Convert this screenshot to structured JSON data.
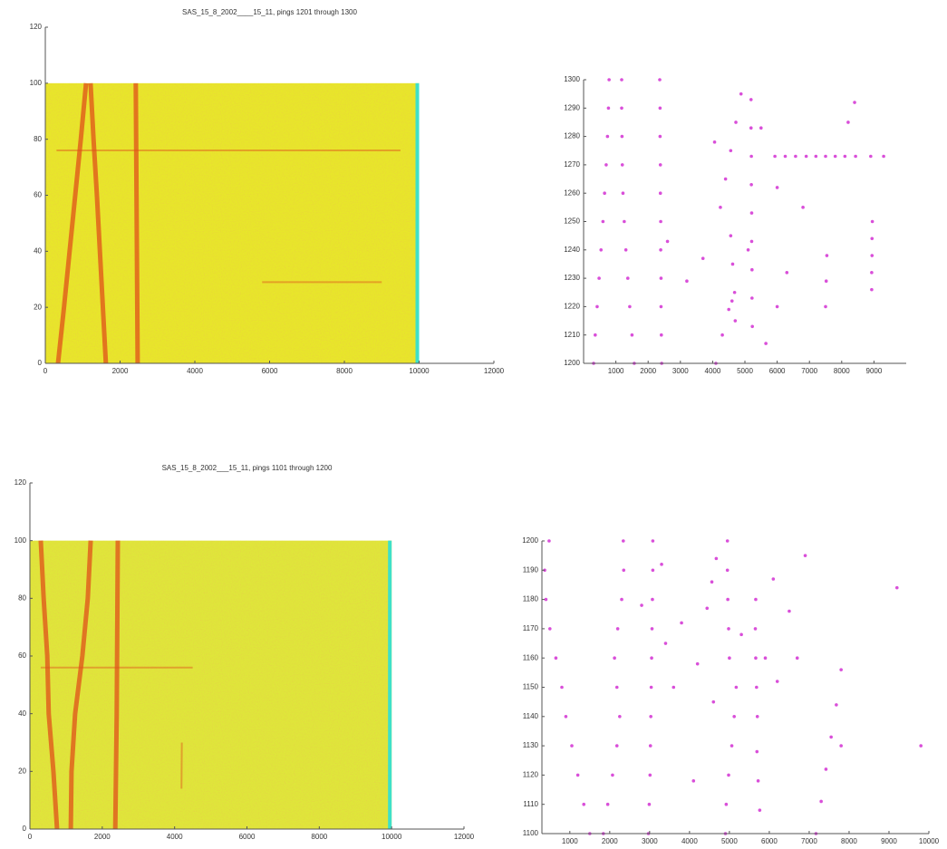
{
  "chart_data": [
    {
      "type": "heatmap",
      "title": "SAS_15_8_2002____15_11, pings 1201 through 1300",
      "xlim": [
        0,
        12000
      ],
      "xticks": [
        0,
        2000,
        4000,
        6000,
        8000,
        10000,
        12000
      ],
      "ylim": [
        0,
        120
      ],
      "yticks": [
        0,
        20,
        40,
        60,
        80,
        100,
        120
      ],
      "image_xlim": [
        0,
        10000
      ],
      "image_ylim": [
        0,
        100
      ],
      "background_color": "#e8e62a",
      "edge_color": "#3fe0c8",
      "track_color": "#e0501a",
      "tracks": [
        {
          "x": [
            340,
            500,
            650,
            800,
            950,
            1090
          ],
          "y": [
            0,
            20,
            40,
            60,
            80,
            100
          ]
        },
        {
          "x": [
            1620,
            1540,
            1460,
            1380,
            1290,
            1210
          ],
          "y": [
            0,
            20,
            40,
            60,
            80,
            100
          ]
        },
        {
          "x": [
            2470,
            2460,
            2450,
            2440,
            2430,
            2420
          ],
          "y": [
            0,
            20,
            40,
            60,
            80,
            100
          ]
        },
        {
          "x": [
            300,
            9500
          ],
          "y": [
            76,
            76
          ]
        },
        {
          "x": [
            5800,
            9000
          ],
          "y": [
            29,
            29
          ]
        }
      ]
    },
    {
      "type": "scatter",
      "xlim": [
        0,
        10000
      ],
      "xticks": [
        1000,
        2000,
        3000,
        4000,
        5000,
        6000,
        7000,
        8000,
        9000
      ],
      "ylim": [
        1200,
        1300
      ],
      "yticks": [
        1200,
        1210,
        1220,
        1230,
        1240,
        1250,
        1260,
        1270,
        1280,
        1290,
        1300
      ],
      "color": "#d94fd9",
      "x": [
        310,
        360,
        420,
        480,
        540,
        600,
        650,
        700,
        740,
        770,
        790,
        1570,
        1500,
        1430,
        1370,
        1310,
        1260,
        1220,
        1200,
        1190,
        1180,
        1180,
        2420,
        2410,
        2400,
        2400,
        2390,
        2390,
        2380,
        2380,
        2370,
        2370,
        2360,
        4240,
        4400,
        4560,
        4720,
        4880,
        5230,
        5220,
        5220,
        5210,
        5210,
        5200,
        5200,
        5190,
        5190,
        4700,
        4680,
        4620,
        4560,
        4100,
        4300,
        4500,
        5650,
        6000,
        6300,
        7500,
        7520,
        7540,
        8930,
        8930,
        8940,
        8940,
        8950,
        5930,
        6250,
        6570,
        6900,
        7200,
        7500,
        7800,
        8100,
        8430,
        8900,
        9300,
        4060,
        6000,
        5100,
        3700,
        2600,
        6800,
        8400,
        8200,
        5500,
        3200,
        4600
      ],
      "y": [
        1200,
        1210,
        1220,
        1230,
        1240,
        1250,
        1260,
        1270,
        1280,
        1290,
        1300,
        1200,
        1210,
        1220,
        1230,
        1240,
        1250,
        1260,
        1270,
        1280,
        1290,
        1300,
        1200,
        1210,
        1220,
        1230,
        1240,
        1250,
        1260,
        1270,
        1280,
        1290,
        1300,
        1255,
        1265,
        1275,
        1285,
        1295,
        1213,
        1223,
        1233,
        1243,
        1253,
        1263,
        1273,
        1283,
        1293,
        1215,
        1225,
        1235,
        1245,
        1200,
        1210,
        1219,
        1207,
        1220,
        1232,
        1220,
        1229,
        1238,
        1226,
        1232,
        1238,
        1244,
        1250,
        1273,
        1273,
        1273,
        1273,
        1273,
        1273,
        1273,
        1273,
        1273,
        1273,
        1273,
        1278,
        1262,
        1240,
        1237,
        1243,
        1255,
        1292,
        1285,
        1283,
        1229,
        1222
      ]
    },
    {
      "type": "heatmap",
      "title": "SAS_15_8_2002___15_11, pings 1101 through 1200",
      "xlim": [
        0,
        12000
      ],
      "xticks": [
        0,
        2000,
        4000,
        6000,
        8000,
        10000,
        12000
      ],
      "ylim": [
        0,
        120
      ],
      "yticks": [
        0,
        20,
        40,
        60,
        80,
        100,
        120
      ],
      "image_xlim": [
        0,
        10000
      ],
      "image_ylim": [
        0,
        100
      ],
      "background_color": "#dfe63a",
      "edge_color": "#3fe0c8",
      "track_color": "#e0501a",
      "tracks": [
        {
          "x": [
            750,
            650,
            520,
            480,
            380,
            300
          ],
          "y": [
            0,
            20,
            40,
            60,
            80,
            100
          ]
        },
        {
          "x": [
            1130,
            1150,
            1250,
            1450,
            1600,
            1680
          ],
          "y": [
            0,
            20,
            40,
            60,
            80,
            100
          ]
        },
        {
          "x": [
            2360,
            2380,
            2400,
            2410,
            2420,
            2430
          ],
          "y": [
            0,
            20,
            40,
            60,
            80,
            100
          ]
        },
        {
          "x": [
            4190,
            4200
          ],
          "y": [
            14,
            30
          ]
        },
        {
          "x": [
            300,
            4500
          ],
          "y": [
            56,
            56
          ]
        }
      ]
    },
    {
      "type": "scatter",
      "xlim": [
        300,
        10000
      ],
      "xticks": [
        1000,
        2000,
        3000,
        4000,
        5000,
        6000,
        7000,
        8000,
        9000,
        10000
      ],
      "ylim": [
        1100,
        1200
      ],
      "yticks": [
        1100,
        1110,
        1120,
        1130,
        1140,
        1150,
        1160,
        1170,
        1180,
        1190,
        1200
      ],
      "color": "#d94fd9",
      "x": [
        1500,
        1350,
        1200,
        1050,
        900,
        800,
        650,
        500,
        400,
        370,
        480,
        1840,
        1950,
        2070,
        2180,
        2250,
        2180,
        2120,
        2200,
        2300,
        2350,
        2340,
        2970,
        2990,
        3010,
        3020,
        3030,
        3040,
        3050,
        3060,
        3070,
        3080,
        3080,
        4900,
        4920,
        4980,
        5060,
        5120,
        5170,
        5760,
        5720,
        5690,
        5700,
        5680,
        5660,
        5650,
        5660,
        7170,
        7300,
        7420,
        7550,
        7680,
        7800,
        4440,
        4560,
        4670,
        5000,
        4980,
        4960,
        4950,
        4950,
        3400,
        3600,
        3800,
        4200,
        4600,
        5300,
        5900,
        6200,
        6500,
        6900,
        7800,
        9200,
        9800,
        3300,
        4100,
        2800,
        6700,
        6100
      ],
      "y": [
        1100,
        1110,
        1120,
        1130,
        1140,
        1150,
        1160,
        1170,
        1180,
        1190,
        1200,
        1100,
        1110,
        1120,
        1130,
        1140,
        1150,
        1160,
        1170,
        1180,
        1190,
        1200,
        1100,
        1110,
        1120,
        1130,
        1140,
        1150,
        1160,
        1170,
        1180,
        1190,
        1200,
        1100,
        1110,
        1120,
        1130,
        1140,
        1150,
        1108,
        1118,
        1128,
        1140,
        1150,
        1160,
        1170,
        1180,
        1100,
        1111,
        1122,
        1133,
        1144,
        1156,
        1177,
        1186,
        1194,
        1160,
        1170,
        1180,
        1190,
        1200,
        1165,
        1150,
        1172,
        1158,
        1145,
        1168,
        1160,
        1152,
        1176,
        1195,
        1130,
        1184,
        1130,
        1192,
        1118,
        1178,
        1160,
        1187
      ]
    }
  ]
}
